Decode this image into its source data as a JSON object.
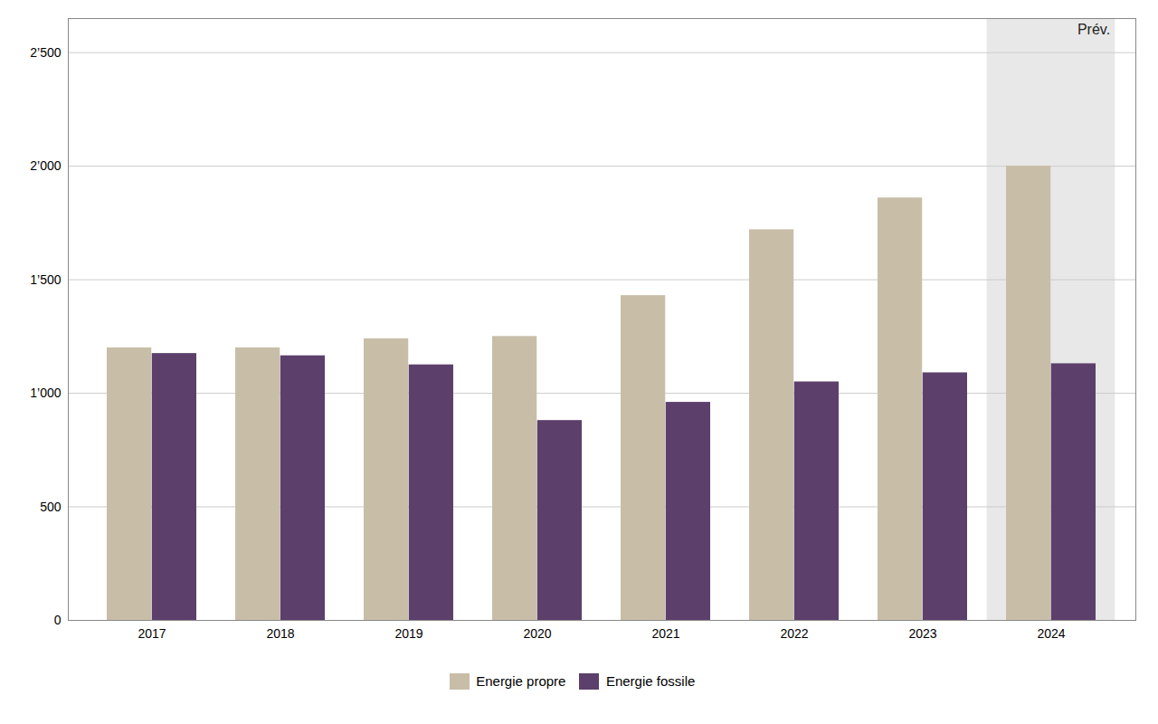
{
  "chart_data": {
    "type": "bar",
    "categories": [
      "2017",
      "2018",
      "2019",
      "2020",
      "2021",
      "2022",
      "2023",
      "2024"
    ],
    "series": [
      {
        "name": "Energie propre",
        "color": "#C8BEA8",
        "values": [
          1200,
          1200,
          1240,
          1250,
          1430,
          1720,
          1860,
          2000
        ]
      },
      {
        "name": "Energie fossile",
        "color": "#5C3F6B",
        "values": [
          1175,
          1165,
          1125,
          880,
          960,
          1050,
          1090,
          1130
        ]
      }
    ],
    "ylim": [
      0,
      2650
    ],
    "yticks": [
      0,
      500,
      {
        "value": 1000,
        "label": "1’000"
      },
      {
        "value": 1500,
        "label": "1’500"
      },
      {
        "value": 2000,
        "label": "2’000"
      },
      {
        "value": 2500,
        "label": "2’500"
      }
    ],
    "grid": true,
    "legend": "bottom",
    "annotations": [
      {
        "text": "Prév.",
        "category": "2024",
        "color": "#E8E8E8"
      }
    ]
  }
}
